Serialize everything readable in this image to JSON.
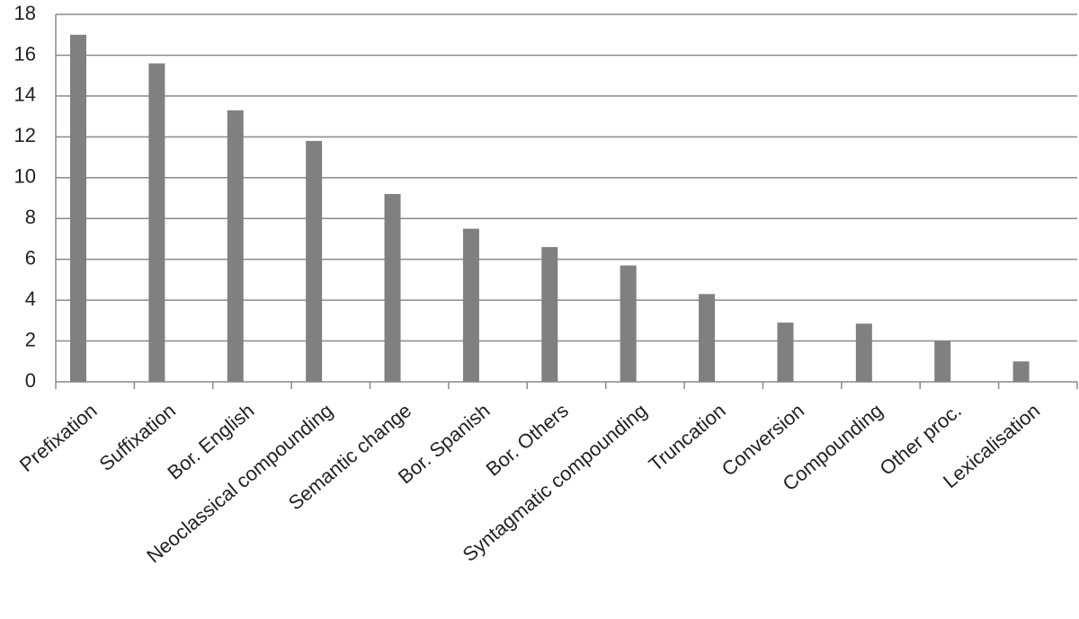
{
  "chart_data": {
    "type": "bar",
    "categories": [
      "Prefixation",
      "Suffixation",
      "Bor. English",
      "Neoclassical compounding",
      "Semantic change",
      "Bor. Spanish",
      "Bor. Others",
      "Syntagmatic compounding",
      "Truncation",
      "Conversion",
      "Compounding",
      "Other proc.",
      "Lexicalisation"
    ],
    "values": [
      17,
      15.6,
      13.3,
      11.8,
      9.2,
      7.5,
      6.6,
      5.7,
      4.3,
      2.9,
      2.85,
      2.0,
      1.0
    ],
    "color": "#808080",
    "ylim": [
      0,
      18
    ],
    "yticks": [
      0,
      2,
      4,
      6,
      8,
      10,
      12,
      14,
      16,
      18
    ],
    "grid": true
  }
}
